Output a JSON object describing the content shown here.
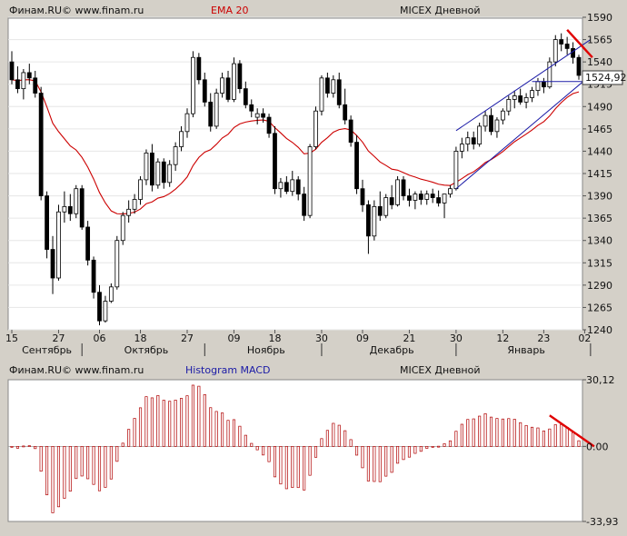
{
  "top_header": {
    "source": "Финам.RU© www.finam.ru",
    "indicator": "EMA 20",
    "instrument": "MICEX Дневной"
  },
  "bottom_header": {
    "source": "Финам.RU© www.finam.ru",
    "indicator": "Histogram MACD",
    "instrument": "MICEX Дневной"
  },
  "colors": {
    "candle": "#000000",
    "ema": "#cc0000",
    "channel": "#1a1aa6",
    "macd": "#b00000",
    "trend": "#e00000",
    "background": "#ffffff"
  },
  "chart_data": [
    {
      "type": "candlestick",
      "ylim": [
        1240,
        1590
      ],
      "yticks": [
        1590,
        1565,
        1540,
        1515,
        1490,
        1465,
        1440,
        1415,
        1390,
        1365,
        1340,
        1315,
        1290,
        1265,
        1240
      ],
      "xtick_days": [
        "15",
        "27",
        "06",
        "18",
        "27",
        "09",
        "18",
        "30",
        "09",
        "21",
        "30",
        "12",
        "23",
        "02"
      ],
      "xtick_months": [
        "Сентябрь",
        "Октябрь",
        "Ноябрь",
        "Декабрь",
        "Январь"
      ],
      "last_price": "1524,92",
      "candles": [
        [
          1540,
          1552,
          1515,
          1520
        ],
        [
          1520,
          1535,
          1505,
          1510
        ],
        [
          1510,
          1532,
          1498,
          1528
        ],
        [
          1528,
          1538,
          1515,
          1522
        ],
        [
          1522,
          1530,
          1500,
          1505
        ],
        [
          1505,
          1512,
          1385,
          1390
        ],
        [
          1390,
          1395,
          1320,
          1330
        ],
        [
          1330,
          1345,
          1280,
          1298
        ],
        [
          1298,
          1380,
          1295,
          1372
        ],
        [
          1372,
          1395,
          1360,
          1378
        ],
        [
          1378,
          1392,
          1362,
          1370
        ],
        [
          1370,
          1402,
          1365,
          1398
        ],
        [
          1398,
          1402,
          1352,
          1355
        ],
        [
          1355,
          1362,
          1312,
          1318
        ],
        [
          1318,
          1322,
          1275,
          1282
        ],
        [
          1282,
          1290,
          1245,
          1250
        ],
        [
          1250,
          1278,
          1248,
          1272
        ],
        [
          1272,
          1292,
          1270,
          1288
        ],
        [
          1288,
          1345,
          1285,
          1340
        ],
        [
          1340,
          1372,
          1335,
          1368
        ],
        [
          1368,
          1385,
          1360,
          1375
        ],
        [
          1375,
          1392,
          1370,
          1386
        ],
        [
          1386,
          1412,
          1380,
          1408
        ],
        [
          1408,
          1442,
          1402,
          1438
        ],
        [
          1438,
          1448,
          1395,
          1402
        ],
        [
          1402,
          1432,
          1398,
          1428
        ],
        [
          1428,
          1432,
          1398,
          1405
        ],
        [
          1405,
          1430,
          1400,
          1425
        ],
        [
          1425,
          1450,
          1418,
          1445
        ],
        [
          1445,
          1468,
          1440,
          1462
        ],
        [
          1462,
          1488,
          1455,
          1482
        ],
        [
          1482,
          1552,
          1478,
          1545
        ],
        [
          1545,
          1550,
          1515,
          1520
        ],
        [
          1520,
          1528,
          1490,
          1495
        ],
        [
          1495,
          1505,
          1462,
          1468
        ],
        [
          1468,
          1510,
          1465,
          1505
        ],
        [
          1505,
          1528,
          1500,
          1522
        ],
        [
          1522,
          1530,
          1495,
          1498
        ],
        [
          1498,
          1545,
          1495,
          1538
        ],
        [
          1538,
          1542,
          1505,
          1510
        ],
        [
          1510,
          1518,
          1488,
          1492
        ],
        [
          1492,
          1498,
          1478,
          1485
        ],
        [
          1478,
          1488,
          1470,
          1482
        ],
        [
          1482,
          1488,
          1472,
          1478
        ],
        [
          1478,
          1482,
          1455,
          1460
        ],
        [
          1460,
          1468,
          1392,
          1398
        ],
        [
          1398,
          1410,
          1388,
          1405
        ],
        [
          1405,
          1412,
          1392,
          1395
        ],
        [
          1395,
          1418,
          1390,
          1408
        ],
        [
          1408,
          1412,
          1385,
          1392
        ],
        [
          1392,
          1400,
          1362,
          1368
        ],
        [
          1368,
          1448,
          1365,
          1445
        ],
        [
          1445,
          1490,
          1442,
          1485
        ],
        [
          1485,
          1525,
          1480,
          1522
        ],
        [
          1522,
          1528,
          1500,
          1505
        ],
        [
          1505,
          1525,
          1500,
          1520
        ],
        [
          1520,
          1528,
          1488,
          1492
        ],
        [
          1492,
          1510,
          1470,
          1475
        ],
        [
          1475,
          1480,
          1445,
          1450
        ],
        [
          1450,
          1458,
          1392,
          1398
        ],
        [
          1398,
          1408,
          1372,
          1380
        ],
        [
          1380,
          1385,
          1325,
          1345
        ],
        [
          1345,
          1385,
          1340,
          1378
        ],
        [
          1378,
          1395,
          1362,
          1368
        ],
        [
          1368,
          1392,
          1365,
          1388
        ],
        [
          1388,
          1402,
          1375,
          1380
        ],
        [
          1380,
          1412,
          1378,
          1408
        ],
        [
          1408,
          1412,
          1385,
          1390
        ],
        [
          1390,
          1398,
          1378,
          1385
        ],
        [
          1385,
          1395,
          1375,
          1392
        ],
        [
          1392,
          1396,
          1380,
          1386
        ],
        [
          1386,
          1396,
          1380,
          1392
        ],
        [
          1392,
          1398,
          1382,
          1388
        ],
        [
          1388,
          1396,
          1378,
          1382
        ],
        [
          1382,
          1392,
          1365,
          1392
        ],
        [
          1392,
          1402,
          1388,
          1398
        ],
        [
          1398,
          1445,
          1396,
          1440
        ],
        [
          1440,
          1455,
          1432,
          1448
        ],
        [
          1448,
          1462,
          1440,
          1455
        ],
        [
          1455,
          1462,
          1442,
          1448
        ],
        [
          1448,
          1472,
          1445,
          1468
        ],
        [
          1468,
          1485,
          1462,
          1480
        ],
        [
          1480,
          1488,
          1458,
          1462
        ],
        [
          1462,
          1478,
          1455,
          1475
        ],
        [
          1475,
          1488,
          1470,
          1485
        ],
        [
          1485,
          1502,
          1480,
          1498
        ],
        [
          1498,
          1508,
          1488,
          1502
        ],
        [
          1502,
          1510,
          1492,
          1495
        ],
        [
          1495,
          1505,
          1488,
          1500
        ],
        [
          1500,
          1512,
          1495,
          1508
        ],
        [
          1508,
          1522,
          1502,
          1518
        ],
        [
          1518,
          1522,
          1505,
          1512
        ],
        [
          1512,
          1545,
          1510,
          1540
        ],
        [
          1540,
          1570,
          1535,
          1565
        ],
        [
          1565,
          1572,
          1552,
          1560
        ],
        [
          1560,
          1568,
          1548,
          1555
        ],
        [
          1555,
          1562,
          1538,
          1545
        ],
        [
          1545,
          1548,
          1520,
          1524.92
        ]
      ]
    },
    {
      "type": "bar",
      "ylim": [
        -33.93,
        30.12
      ],
      "yticks": [
        "30,12",
        "0.00",
        "-33,93"
      ]
    }
  ]
}
